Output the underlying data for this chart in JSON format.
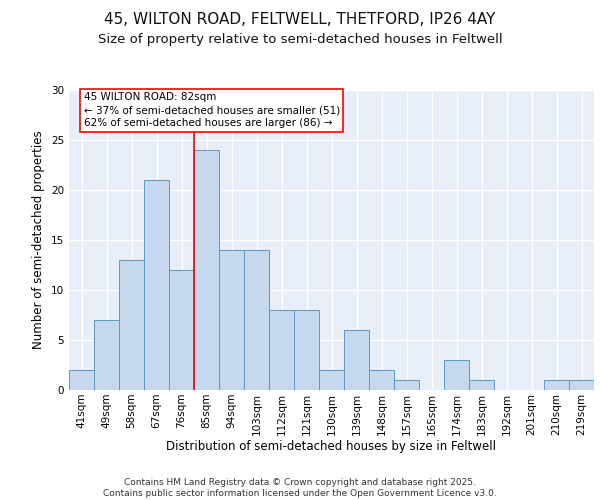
{
  "title_line1": "45, WILTON ROAD, FELTWELL, THETFORD, IP26 4AY",
  "title_line2": "Size of property relative to semi-detached houses in Feltwell",
  "xlabel": "Distribution of semi-detached houses by size in Feltwell",
  "ylabel": "Number of semi-detached properties",
  "categories": [
    "41sqm",
    "49sqm",
    "58sqm",
    "67sqm",
    "76sqm",
    "85sqm",
    "94sqm",
    "103sqm",
    "112sqm",
    "121sqm",
    "130sqm",
    "139sqm",
    "148sqm",
    "157sqm",
    "165sqm",
    "174sqm",
    "183sqm",
    "192sqm",
    "201sqm",
    "210sqm",
    "219sqm"
  ],
  "values": [
    2,
    7,
    13,
    21,
    12,
    24,
    14,
    14,
    8,
    8,
    2,
    6,
    2,
    1,
    0,
    3,
    1,
    0,
    0,
    1,
    1
  ],
  "bar_color": "#c5d8ed",
  "bar_edge_color": "#5a9ac8",
  "background_color": "#e8eef7",
  "grid_color": "#ffffff",
  "red_line_x": 4.5,
  "annotation_box_text": "45 WILTON ROAD: 82sqm\n← 37% of semi-detached houses are smaller (51)\n62% of semi-detached houses are larger (86) →",
  "ylim": [
    0,
    30
  ],
  "yticks": [
    0,
    5,
    10,
    15,
    20,
    25,
    30
  ],
  "footer_text": "Contains HM Land Registry data © Crown copyright and database right 2025.\nContains public sector information licensed under the Open Government Licence v3.0.",
  "title_fontsize": 11,
  "subtitle_fontsize": 9.5,
  "axis_label_fontsize": 8.5,
  "tick_fontsize": 7.5,
  "annotation_fontsize": 7.5,
  "footer_fontsize": 6.5
}
